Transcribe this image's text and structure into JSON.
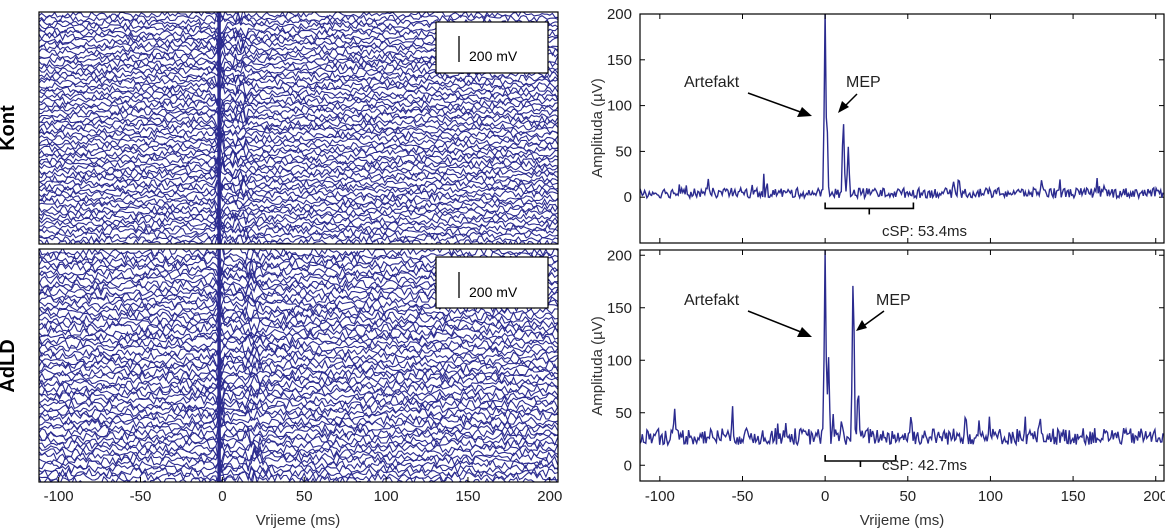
{
  "figure": {
    "trace_color": "#2B2B8F",
    "left_xlabel": "Vrijeme (ms)",
    "right_xlabel": "Vrijeme (ms)"
  },
  "chart_data": [
    {
      "type": "line",
      "panel": "left-top",
      "ylabel": "Kont",
      "xlim": [
        -112,
        205
      ],
      "xticks": [
        "-100",
        "-50",
        "0",
        "50",
        "100",
        "150",
        "200"
      ],
      "scalebar_label": "200 mV",
      "trace_count": 62,
      "artifact_x": -2,
      "response_x": 10
    },
    {
      "type": "line",
      "panel": "left-bottom",
      "ylabel": "AdLD",
      "xlim": [
        -112,
        205
      ],
      "xticks": [
        "-100",
        "-50",
        "0",
        "50",
        "100",
        "150",
        "200"
      ],
      "scalebar_label": "200 mV",
      "trace_count": 58,
      "artifact_x": -2,
      "response_x": 18
    },
    {
      "type": "line",
      "panel": "right-top",
      "ylabel": "Amplituda (µV)",
      "xlim": [
        -112,
        205
      ],
      "ylim": [
        -50,
        200
      ],
      "yticks": [
        "0",
        "50",
        "100",
        "150",
        "200"
      ],
      "baseline": 3,
      "peaks": [
        {
          "x": 0,
          "y": 205
        },
        {
          "x": 1,
          "y": 105
        },
        {
          "x": 11,
          "y": 95
        },
        {
          "x": 14,
          "y": 55
        },
        {
          "x": 30,
          "y": 10
        },
        {
          "x": 131,
          "y": 20
        }
      ],
      "annotations": {
        "artefakt": "Artefakt",
        "mep": "MEP"
      },
      "csp": {
        "start": 0,
        "end": 53.4,
        "label": "cSP: 53.4ms"
      }
    },
    {
      "type": "line",
      "panel": "right-bottom",
      "ylabel": "Amplituda (µV)",
      "xlim": [
        -112,
        205
      ],
      "ylim": [
        -15,
        205
      ],
      "yticks": [
        "0",
        "50",
        "100",
        "150",
        "200"
      ],
      "baseline": 25,
      "peaks": [
        {
          "x": 0,
          "y": 205
        },
        {
          "x": 2,
          "y": 110
        },
        {
          "x": 10,
          "y": 45
        },
        {
          "x": 17,
          "y": 200
        },
        {
          "x": 20,
          "y": 80
        },
        {
          "x": 52,
          "y": 50
        },
        {
          "x": 85,
          "y": 52
        },
        {
          "x": 130,
          "y": 48
        }
      ],
      "annotations": {
        "artefakt": "Artefakt",
        "mep": "MEP"
      },
      "csp": {
        "start": 0,
        "end": 42.7,
        "label": "cSP: 42.7ms"
      }
    }
  ]
}
